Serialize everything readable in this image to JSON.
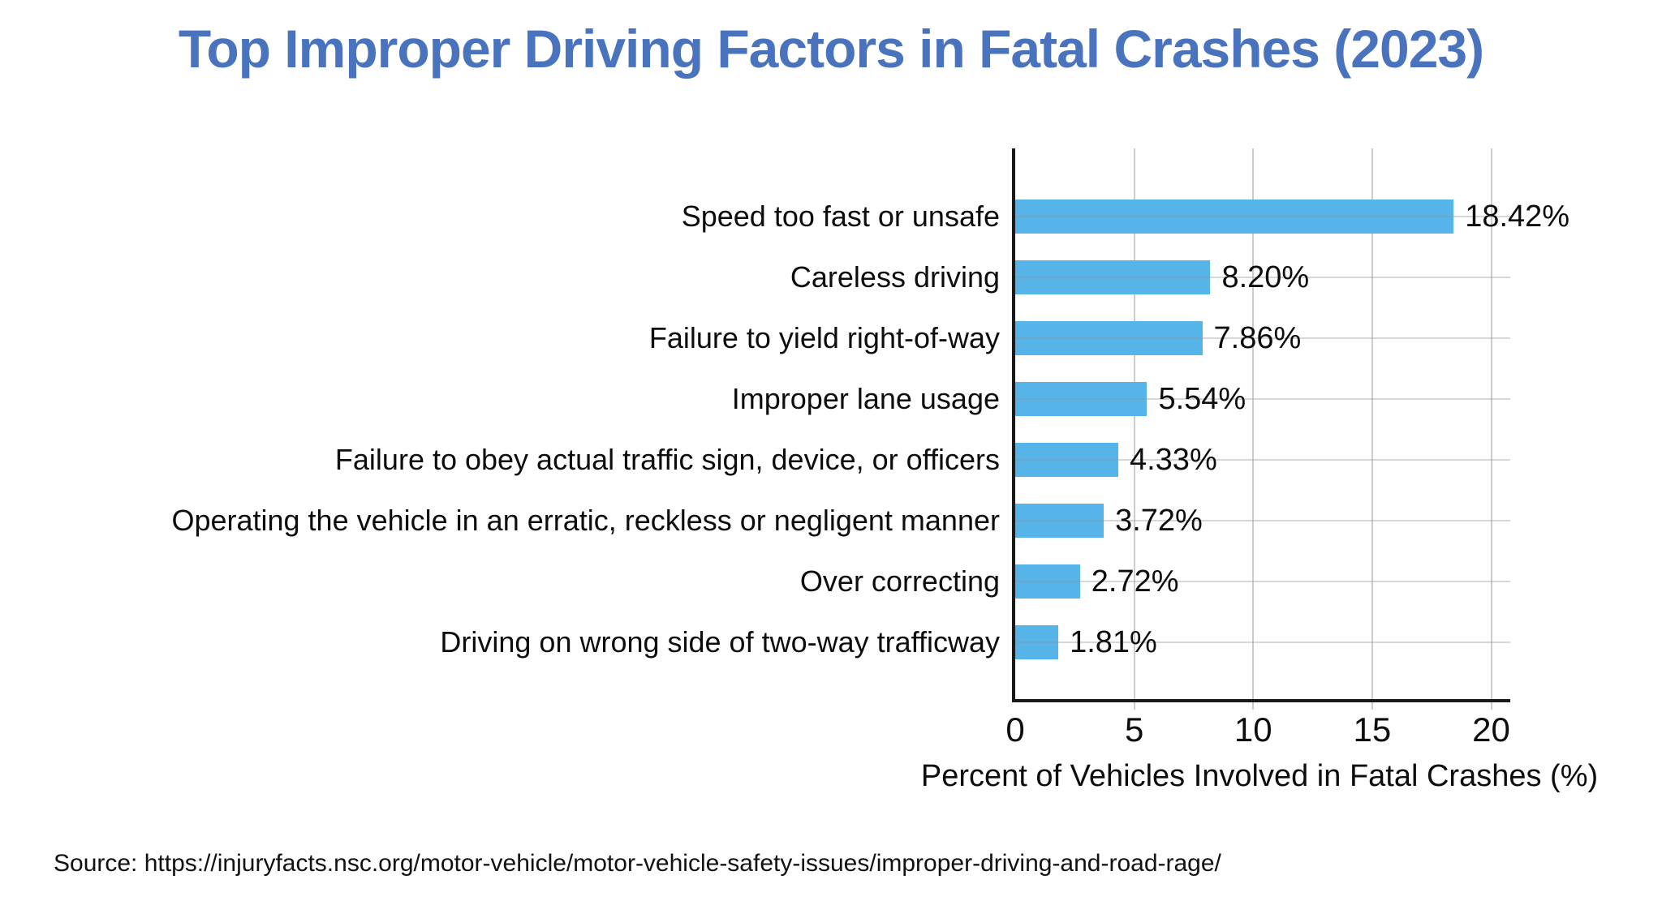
{
  "page": {
    "title": "Top Improper Driving Factors in Fatal Crashes (2023)",
    "source_note": "Source: https://injuryfacts.nsc.org/motor-vehicle/motor-vehicle-safety-issues/improper-driving-and-road-rage/"
  },
  "colors": {
    "title": "#4a73be",
    "bar": "#56b4e9",
    "axis": "#1a1a1a",
    "gridline": "#cccccc",
    "text": "#0d0d0d"
  },
  "chart_data": {
    "type": "bar",
    "orientation": "horizontal",
    "title": "Top Improper Driving Factors in Fatal Crashes (2023)",
    "xlabel": "Percent of Vehicles Involved in Fatal Crashes (%)",
    "ylabel": "",
    "xlim": [
      0,
      20.8
    ],
    "xticks": [
      0,
      5,
      10,
      15,
      20
    ],
    "grid": true,
    "legend": false,
    "categories": [
      "Speed too fast or unsafe",
      "Careless driving",
      "Failure to yield right-of-way",
      "Improper lane usage",
      "Failure to obey actual traffic sign, device, or officers",
      "Operating the vehicle in an erratic, reckless or negligent manner",
      "Over correcting",
      "Driving on wrong side of two-way trafficway"
    ],
    "values": [
      18.42,
      8.2,
      7.86,
      5.54,
      4.33,
      3.72,
      2.72,
      1.81
    ],
    "value_labels": [
      "18.42%",
      "8.20%",
      "7.86%",
      "5.54%",
      "4.33%",
      "3.72%",
      "2.72%",
      "1.81%"
    ]
  }
}
